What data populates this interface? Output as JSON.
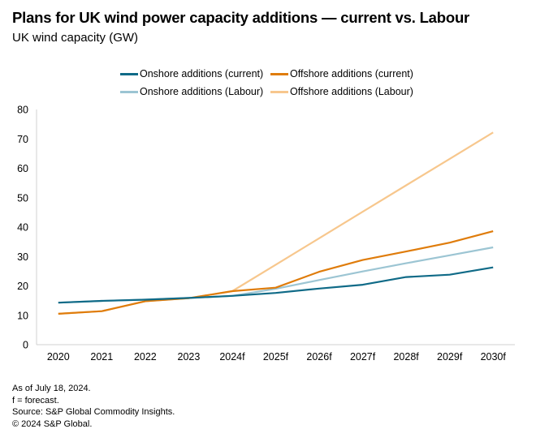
{
  "chart_data": {
    "type": "line",
    "title": "Plans for UK wind power capacity additions — current vs. Labour",
    "subtitle": "UK wind capacity (GW)",
    "xlabel": "",
    "ylabel": "UK wind capacity (GW)",
    "x": [
      "2020",
      "2021",
      "2022",
      "2023",
      "2024f",
      "2025f",
      "2026f",
      "2027f",
      "2028f",
      "2029f",
      "2030f"
    ],
    "ylim": [
      0,
      80
    ],
    "yticks": [
      0,
      10,
      20,
      30,
      40,
      50,
      60,
      70,
      80
    ],
    "grid": false,
    "legend_position": "top-center",
    "series": [
      {
        "name": "Onshore additions (current)",
        "color": "#0F6A87",
        "values": [
          14.3,
          14.9,
          15.3,
          15.9,
          16.6,
          17.6,
          19.1,
          20.4,
          23.0,
          23.8,
          26.3
        ]
      },
      {
        "name": "Offshore additions (current)",
        "color": "#DF7C0B",
        "values": [
          10.5,
          11.4,
          14.8,
          15.8,
          18.2,
          19.4,
          24.8,
          28.8,
          31.7,
          34.7,
          38.6
        ]
      },
      {
        "name": "Onshore additions (Labour)",
        "color": "#9CC5D3",
        "values": [
          14.3,
          14.9,
          15.3,
          15.9,
          16.6,
          19.0,
          22.0,
          24.9,
          27.7,
          30.4,
          33.1
        ]
      },
      {
        "name": "Offshore additions (Labour)",
        "color": "#F7C78D",
        "values": [
          10.5,
          11.4,
          14.8,
          15.8,
          18.2,
          27.2,
          36.2,
          45.2,
          54.2,
          63.2,
          72.2
        ]
      }
    ]
  },
  "footnotes": [
    "As of July 18, 2024.",
    "f = forecast.",
    "Source: S&P Global Commodity Insights.",
    "© 2024 S&P Global."
  ]
}
